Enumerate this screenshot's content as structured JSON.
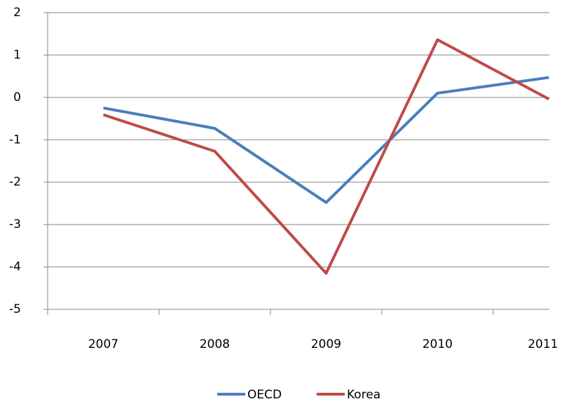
{
  "chart_data": {
    "type": "line",
    "categories": [
      "2007",
      "2008",
      "2009",
      "2010",
      "2011"
    ],
    "series": [
      {
        "name": "OECD",
        "color": "#4a7ebb",
        "values": [
          -0.25,
          -0.73,
          -2.48,
          0.1,
          0.47
        ]
      },
      {
        "name": "Korea",
        "color": "#be4b48",
        "values": [
          -0.41,
          -1.27,
          -4.15,
          1.36,
          -0.04
        ]
      }
    ],
    "ylim": [
      -5,
      2
    ],
    "yticks": [
      -5,
      -4,
      -3,
      -2,
      -1,
      0,
      1,
      2
    ],
    "grid": true,
    "legend": "bottom"
  }
}
